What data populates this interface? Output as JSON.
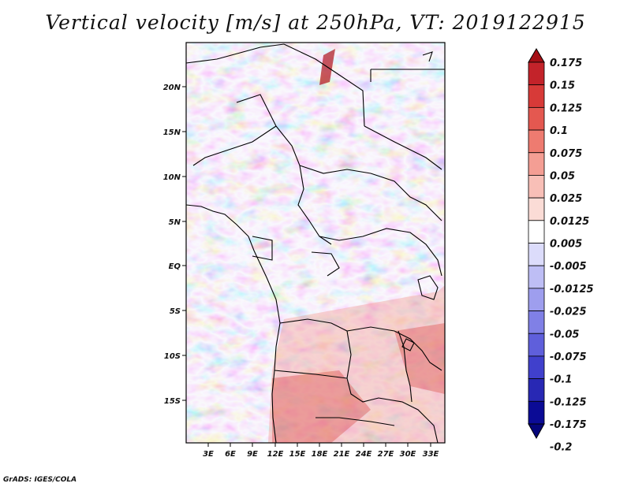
{
  "title": "Vertical velocity [m/s] at 250hPa, VT: 2019122915",
  "credit": "GrADS: IGES/COLA",
  "map": {
    "lat_labels": [
      "20N",
      "15N",
      "10N",
      "5N",
      "EQ",
      "5S",
      "10S",
      "15S"
    ],
    "lon_labels": [
      "3E",
      "6E",
      "9E",
      "12E",
      "15E",
      "18E",
      "21E",
      "24E",
      "27E",
      "30E",
      "33E"
    ]
  },
  "colorbar": {
    "levels": [
      "0.175",
      "0.15",
      "0.125",
      "0.1",
      "0.075",
      "0.05",
      "0.025",
      "0.0125",
      "0.005",
      "-0.005",
      "-0.0125",
      "-0.025",
      "-0.05",
      "-0.075",
      "-0.1",
      "-0.125",
      "-0.175",
      "-0.2"
    ],
    "colors": [
      "#a50f15",
      "#c3232a",
      "#d73a38",
      "#e45850",
      "#ee7b70",
      "#f49e94",
      "#f8bfb7",
      "#fbdcd6",
      "#ffffff",
      "#dcdcfb",
      "#bebef5",
      "#9e9eee",
      "#8080e6",
      "#5f5fdb",
      "#4040cc",
      "#2828b4",
      "#0b0b96",
      "#05057a"
    ]
  }
}
